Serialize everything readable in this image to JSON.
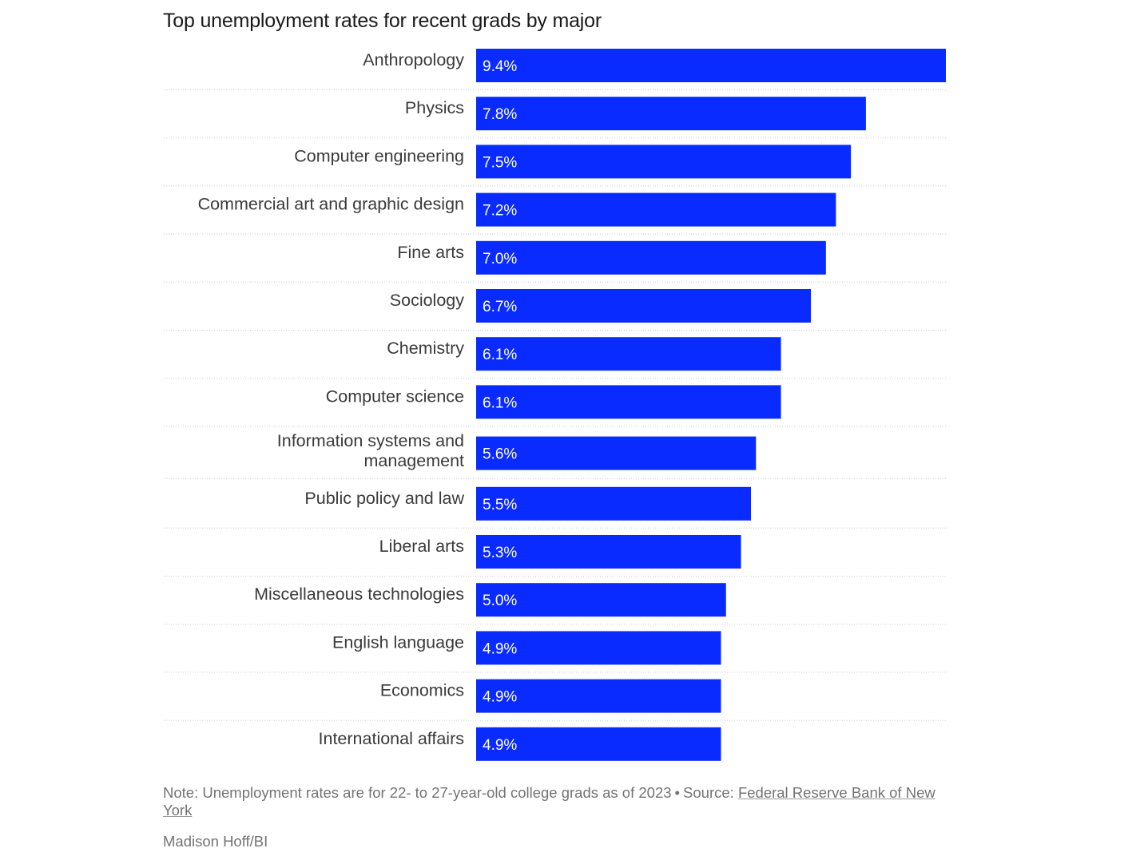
{
  "chart_data": {
    "type": "bar",
    "orientation": "horizontal",
    "title": "Top unemployment rates for recent grads by major",
    "categories": [
      "Anthropology",
      "Physics",
      "Computer engineering",
      "Commercial art and graphic design",
      "Fine arts",
      "Sociology",
      "Chemistry",
      "Computer science",
      "Information systems and management",
      "Public policy and law",
      "Liberal arts",
      "Miscellaneous technologies",
      "English language",
      "Economics",
      "International affairs"
    ],
    "category_lines": [
      [
        "Anthropology"
      ],
      [
        "Physics"
      ],
      [
        "Computer engineering"
      ],
      [
        "Commercial art and graphic design"
      ],
      [
        "Fine arts"
      ],
      [
        "Sociology"
      ],
      [
        "Chemistry"
      ],
      [
        "Computer science"
      ],
      [
        "Information systems and",
        "management"
      ],
      [
        "Public policy and law"
      ],
      [
        "Liberal arts"
      ],
      [
        "Miscellaneous technologies"
      ],
      [
        "English language"
      ],
      [
        "Economics"
      ],
      [
        "International affairs"
      ]
    ],
    "values": [
      9.4,
      7.8,
      7.5,
      7.2,
      7.0,
      6.7,
      6.1,
      6.1,
      5.6,
      5.5,
      5.3,
      5.0,
      4.9,
      4.9,
      4.9
    ],
    "value_labels": [
      "9.4%",
      "7.8%",
      "7.5%",
      "7.2%",
      "7.0%",
      "6.7%",
      "6.1%",
      "6.1%",
      "5.6%",
      "5.5%",
      "5.3%",
      "5.0%",
      "4.9%",
      "4.9%",
      "4.9%"
    ],
    "xlim": [
      0,
      9.4
    ],
    "xlabel": "",
    "ylabel": "",
    "grid": false,
    "legend": "none",
    "bar_color": "#0a2bff",
    "label_color": "#ffffff"
  },
  "footer": {
    "note": "Note: Unemployment rates are for 22- to 27-year-old college grads as of 2023",
    "separator": "•",
    "source_prefix": "Source:",
    "source_name": "Federal Reserve Bank of New York",
    "credit": "Madison Hoff/BI"
  }
}
